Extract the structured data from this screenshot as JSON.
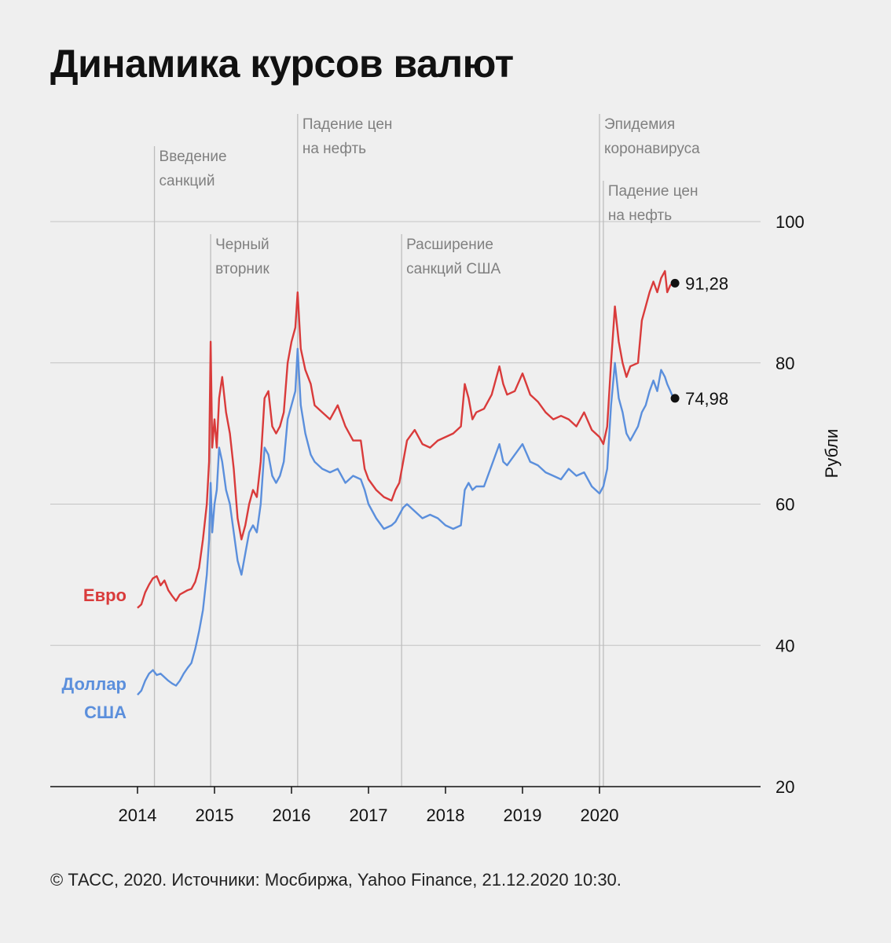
{
  "title": "Динамика курсов валют",
  "footer": "© ТАСС, 2020. Источники: Мосбиржа, Yahoo Finance, 21.12.2020 10:30.",
  "chart_data": {
    "type": "line",
    "ylabel": "Рубли",
    "ylim": [
      20,
      100
    ],
    "yticks": [
      20,
      40,
      60,
      80,
      100
    ],
    "xlim": [
      2012.88,
      2022.1
    ],
    "xticks": [
      "2014",
      "2015",
      "2016",
      "2017",
      "2018",
      "2019",
      "2020"
    ],
    "grid": "horizontal",
    "colors": {
      "euro": "#d93b3b",
      "usd": "#5b8fdc",
      "annotation_line": "#bdbdbd"
    },
    "annotations": [
      {
        "x": 2014.22,
        "lines": [
          "Введение",
          "санкций"
        ]
      },
      {
        "x": 2014.95,
        "lines": [
          "Черный",
          "вторник"
        ]
      },
      {
        "x": 2016.08,
        "lines": [
          "Падение цен",
          "на нефть"
        ]
      },
      {
        "x": 2017.43,
        "lines": [
          "Расширение",
          "санкций США"
        ]
      },
      {
        "x": 2020.0,
        "lines": [
          "Эпидемия",
          "коронавируса"
        ]
      },
      {
        "x": 2020.05,
        "lines": [
          "Падение цен",
          "на нефть"
        ]
      }
    ],
    "series": [
      {
        "name": "Евро",
        "key": "euro",
        "last_label": "91,28",
        "points": [
          [
            2014.0,
            45.3
          ],
          [
            2014.05,
            45.8
          ],
          [
            2014.1,
            47.5
          ],
          [
            2014.15,
            48.6
          ],
          [
            2014.2,
            49.5
          ],
          [
            2014.25,
            49.8
          ],
          [
            2014.3,
            48.5
          ],
          [
            2014.35,
            49.2
          ],
          [
            2014.4,
            47.8
          ],
          [
            2014.45,
            47.0
          ],
          [
            2014.5,
            46.3
          ],
          [
            2014.55,
            47.2
          ],
          [
            2014.6,
            47.5
          ],
          [
            2014.65,
            47.8
          ],
          [
            2014.7,
            48.0
          ],
          [
            2014.75,
            49.0
          ],
          [
            2014.8,
            51.0
          ],
          [
            2014.85,
            55.0
          ],
          [
            2014.9,
            60.0
          ],
          [
            2014.93,
            66.0
          ],
          [
            2014.95,
            83.0
          ],
          [
            2014.97,
            68.0
          ],
          [
            2015.0,
            72.0
          ],
          [
            2015.03,
            68.0
          ],
          [
            2015.06,
            75.0
          ],
          [
            2015.1,
            78.0
          ],
          [
            2015.15,
            73.0
          ],
          [
            2015.2,
            70.0
          ],
          [
            2015.25,
            65.0
          ],
          [
            2015.3,
            58.0
          ],
          [
            2015.35,
            55.0
          ],
          [
            2015.4,
            57.0
          ],
          [
            2015.45,
            60.0
          ],
          [
            2015.5,
            62.0
          ],
          [
            2015.55,
            61.0
          ],
          [
            2015.6,
            66.0
          ],
          [
            2015.65,
            75.0
          ],
          [
            2015.7,
            76.0
          ],
          [
            2015.75,
            71.0
          ],
          [
            2015.8,
            70.0
          ],
          [
            2015.85,
            71.0
          ],
          [
            2015.9,
            73.0
          ],
          [
            2015.95,
            80.0
          ],
          [
            2016.0,
            83.0
          ],
          [
            2016.05,
            85.0
          ],
          [
            2016.08,
            90.0
          ],
          [
            2016.12,
            82.0
          ],
          [
            2016.18,
            79.0
          ],
          [
            2016.25,
            77.0
          ],
          [
            2016.3,
            74.0
          ],
          [
            2016.4,
            73.0
          ],
          [
            2016.5,
            72.0
          ],
          [
            2016.6,
            74.0
          ],
          [
            2016.7,
            71.0
          ],
          [
            2016.8,
            69.0
          ],
          [
            2016.9,
            69.0
          ],
          [
            2016.95,
            65.0
          ],
          [
            2017.0,
            63.5
          ],
          [
            2017.1,
            62.0
          ],
          [
            2017.2,
            61.0
          ],
          [
            2017.3,
            60.5
          ],
          [
            2017.35,
            62.0
          ],
          [
            2017.4,
            63.0
          ],
          [
            2017.45,
            66.0
          ],
          [
            2017.5,
            69.0
          ],
          [
            2017.6,
            70.5
          ],
          [
            2017.7,
            68.5
          ],
          [
            2017.8,
            68.0
          ],
          [
            2017.9,
            69.0
          ],
          [
            2018.0,
            69.5
          ],
          [
            2018.1,
            70.0
          ],
          [
            2018.2,
            71.0
          ],
          [
            2018.25,
            77.0
          ],
          [
            2018.3,
            75.0
          ],
          [
            2018.35,
            72.0
          ],
          [
            2018.4,
            73.0
          ],
          [
            2018.5,
            73.5
          ],
          [
            2018.6,
            75.5
          ],
          [
            2018.7,
            79.5
          ],
          [
            2018.75,
            77.0
          ],
          [
            2018.8,
            75.5
          ],
          [
            2018.9,
            76.0
          ],
          [
            2019.0,
            78.5
          ],
          [
            2019.1,
            75.5
          ],
          [
            2019.2,
            74.5
          ],
          [
            2019.3,
            73.0
          ],
          [
            2019.4,
            72.0
          ],
          [
            2019.5,
            72.5
          ],
          [
            2019.6,
            72.0
          ],
          [
            2019.7,
            71.0
          ],
          [
            2019.8,
            73.0
          ],
          [
            2019.9,
            70.5
          ],
          [
            2020.0,
            69.5
          ],
          [
            2020.05,
            68.5
          ],
          [
            2020.1,
            71.0
          ],
          [
            2020.15,
            80.0
          ],
          [
            2020.2,
            88.0
          ],
          [
            2020.25,
            83.0
          ],
          [
            2020.3,
            80.0
          ],
          [
            2020.35,
            78.0
          ],
          [
            2020.4,
            79.5
          ],
          [
            2020.5,
            80.0
          ],
          [
            2020.55,
            86.0
          ],
          [
            2020.6,
            88.0
          ],
          [
            2020.65,
            90.0
          ],
          [
            2020.7,
            91.5
          ],
          [
            2020.75,
            90.0
          ],
          [
            2020.8,
            92.0
          ],
          [
            2020.85,
            93.0
          ],
          [
            2020.88,
            90.0
          ],
          [
            2020.92,
            91.0
          ],
          [
            2020.96,
            91.28
          ]
        ]
      },
      {
        "name": "Доллар США",
        "key": "usd",
        "last_label": "74,98",
        "points": [
          [
            2014.0,
            33.0
          ],
          [
            2014.05,
            33.6
          ],
          [
            2014.1,
            35.0
          ],
          [
            2014.15,
            36.0
          ],
          [
            2014.2,
            36.5
          ],
          [
            2014.25,
            35.8
          ],
          [
            2014.3,
            36.0
          ],
          [
            2014.35,
            35.5
          ],
          [
            2014.4,
            35.0
          ],
          [
            2014.45,
            34.6
          ],
          [
            2014.5,
            34.3
          ],
          [
            2014.55,
            35.0
          ],
          [
            2014.6,
            36.0
          ],
          [
            2014.65,
            36.8
          ],
          [
            2014.7,
            37.5
          ],
          [
            2014.75,
            39.5
          ],
          [
            2014.8,
            42.0
          ],
          [
            2014.85,
            45.0
          ],
          [
            2014.9,
            50.0
          ],
          [
            2014.93,
            55.0
          ],
          [
            2014.95,
            63.0
          ],
          [
            2014.97,
            56.0
          ],
          [
            2015.0,
            60.0
          ],
          [
            2015.03,
            62.0
          ],
          [
            2015.06,
            68.0
          ],
          [
            2015.1,
            66.0
          ],
          [
            2015.15,
            62.0
          ],
          [
            2015.2,
            60.0
          ],
          [
            2015.25,
            56.0
          ],
          [
            2015.3,
            52.0
          ],
          [
            2015.35,
            50.0
          ],
          [
            2015.4,
            53.0
          ],
          [
            2015.45,
            56.0
          ],
          [
            2015.5,
            57.0
          ],
          [
            2015.55,
            56.0
          ],
          [
            2015.6,
            60.0
          ],
          [
            2015.65,
            68.0
          ],
          [
            2015.7,
            67.0
          ],
          [
            2015.75,
            64.0
          ],
          [
            2015.8,
            63.0
          ],
          [
            2015.85,
            64.0
          ],
          [
            2015.9,
            66.0
          ],
          [
            2015.95,
            72.0
          ],
          [
            2016.0,
            74.0
          ],
          [
            2016.05,
            76.0
          ],
          [
            2016.08,
            82.0
          ],
          [
            2016.12,
            74.0
          ],
          [
            2016.18,
            70.0
          ],
          [
            2016.25,
            67.0
          ],
          [
            2016.3,
            66.0
          ],
          [
            2016.4,
            65.0
          ],
          [
            2016.5,
            64.5
          ],
          [
            2016.6,
            65.0
          ],
          [
            2016.7,
            63.0
          ],
          [
            2016.8,
            64.0
          ],
          [
            2016.9,
            63.5
          ],
          [
            2016.95,
            62.0
          ],
          [
            2017.0,
            60.0
          ],
          [
            2017.1,
            58.0
          ],
          [
            2017.2,
            56.5
          ],
          [
            2017.3,
            57.0
          ],
          [
            2017.35,
            57.5
          ],
          [
            2017.4,
            58.5
          ],
          [
            2017.45,
            59.5
          ],
          [
            2017.5,
            60.0
          ],
          [
            2017.6,
            59.0
          ],
          [
            2017.7,
            58.0
          ],
          [
            2017.8,
            58.5
          ],
          [
            2017.9,
            58.0
          ],
          [
            2018.0,
            57.0
          ],
          [
            2018.1,
            56.5
          ],
          [
            2018.2,
            57.0
          ],
          [
            2018.25,
            62.0
          ],
          [
            2018.3,
            63.0
          ],
          [
            2018.35,
            62.0
          ],
          [
            2018.4,
            62.5
          ],
          [
            2018.5,
            62.5
          ],
          [
            2018.6,
            65.5
          ],
          [
            2018.7,
            68.5
          ],
          [
            2018.75,
            66.0
          ],
          [
            2018.8,
            65.5
          ],
          [
            2018.9,
            67.0
          ],
          [
            2019.0,
            68.5
          ],
          [
            2019.1,
            66.0
          ],
          [
            2019.2,
            65.5
          ],
          [
            2019.3,
            64.5
          ],
          [
            2019.4,
            64.0
          ],
          [
            2019.5,
            63.5
          ],
          [
            2019.6,
            65.0
          ],
          [
            2019.7,
            64.0
          ],
          [
            2019.8,
            64.5
          ],
          [
            2019.9,
            62.5
          ],
          [
            2020.0,
            61.5
          ],
          [
            2020.05,
            62.5
          ],
          [
            2020.1,
            65.0
          ],
          [
            2020.15,
            74.0
          ],
          [
            2020.2,
            80.0
          ],
          [
            2020.25,
            75.0
          ],
          [
            2020.3,
            73.0
          ],
          [
            2020.35,
            70.0
          ],
          [
            2020.4,
            69.0
          ],
          [
            2020.5,
            71.0
          ],
          [
            2020.55,
            73.0
          ],
          [
            2020.6,
            74.0
          ],
          [
            2020.65,
            76.0
          ],
          [
            2020.7,
            77.5
          ],
          [
            2020.75,
            76.0
          ],
          [
            2020.8,
            79.0
          ],
          [
            2020.85,
            78.0
          ],
          [
            2020.88,
            77.0
          ],
          [
            2020.92,
            76.0
          ],
          [
            2020.96,
            74.98
          ]
        ]
      }
    ]
  }
}
